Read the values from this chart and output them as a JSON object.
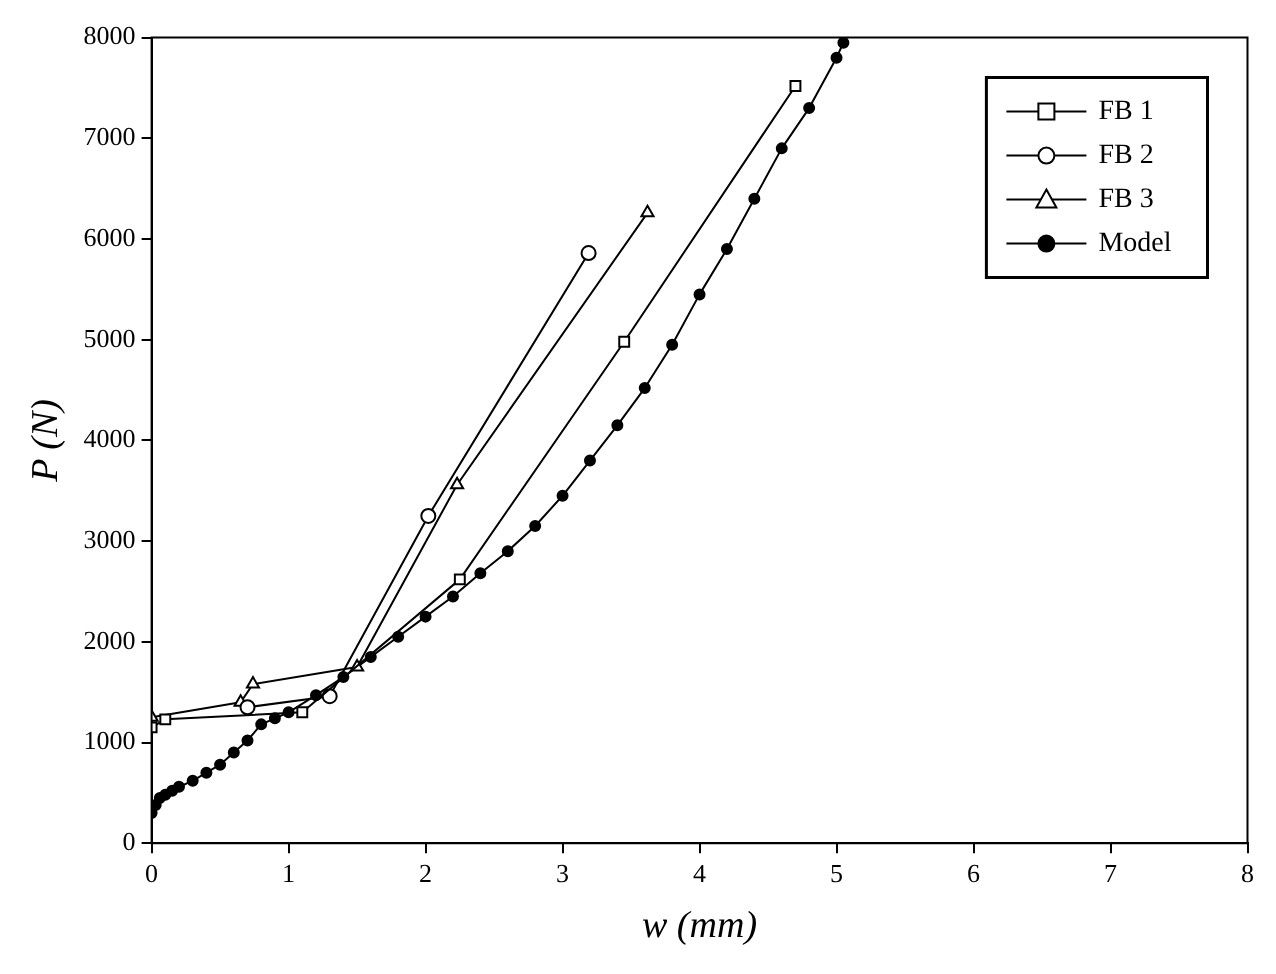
{
  "chart_data": {
    "type": "line",
    "xlabel": "w (mm)",
    "ylabel": "P (N)",
    "xlim": [
      0,
      8
    ],
    "ylim": [
      0,
      8000
    ],
    "xticks": [
      0,
      1,
      2,
      3,
      4,
      5,
      6,
      7,
      8
    ],
    "yticks": [
      0,
      1000,
      2000,
      3000,
      4000,
      5000,
      6000,
      7000,
      8000
    ],
    "grid": false,
    "legend": "top right",
    "series": [
      {
        "name": "FB 1",
        "color": "#000000",
        "marker": "square",
        "x": [
          0,
          0.1,
          1.1,
          2.25,
          3.45,
          4.7
        ],
        "values": [
          1150,
          1230,
          1300,
          2620,
          4980,
          7520
        ]
      },
      {
        "name": "FB 2",
        "color": "#000000",
        "marker": "circle",
        "x": [
          0.7,
          1.3,
          2.02,
          3.19
        ],
        "values": [
          1350,
          1460,
          3250,
          5860
        ]
      },
      {
        "name": "FB 3",
        "color": "#000000",
        "marker": "triangle",
        "x": [
          0,
          0.65,
          0.74,
          1.5,
          2.23,
          3.62
        ],
        "values": [
          1250,
          1400,
          1580,
          1750,
          3560,
          6260
        ]
      },
      {
        "name": "Model",
        "color": "#000000",
        "marker": "circle",
        "x": [
          0,
          0.03,
          0.06,
          0.1,
          0.15,
          0.2,
          0.3,
          0.4,
          0.5,
          0.6,
          0.7,
          0.8,
          0.9,
          1,
          1.2,
          1.4,
          1.6,
          1.8,
          2,
          2.2,
          2.4,
          2.6,
          2.8,
          3,
          3.2,
          3.4,
          3.6,
          3.8,
          4,
          4.2,
          4.4,
          4.6,
          4.8,
          5,
          5.05
        ],
        "values": [
          300,
          380,
          450,
          480,
          520,
          560,
          620,
          700,
          780,
          900,
          1020,
          1180,
          1240,
          1300,
          1470,
          1650,
          1850,
          2050,
          2250,
          2450,
          2680,
          2900,
          3150,
          3450,
          3800,
          4150,
          4520,
          4950,
          5450,
          5900,
          6400,
          6900,
          7300,
          7800,
          7950
        ]
      }
    ]
  }
}
